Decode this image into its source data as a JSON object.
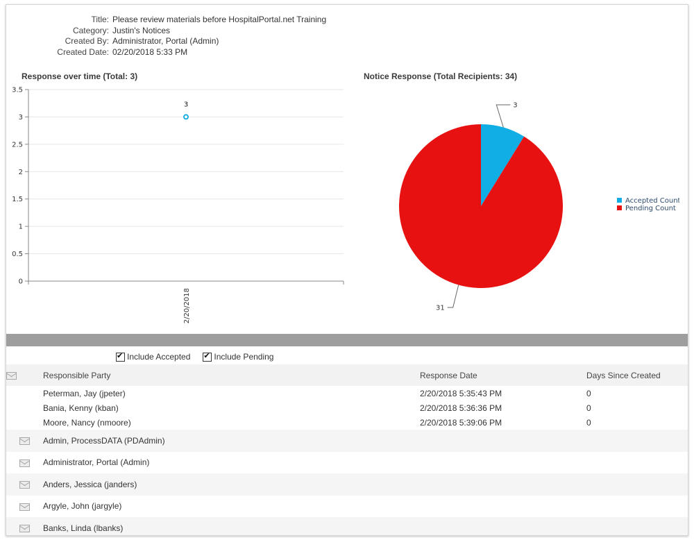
{
  "notice": {
    "title_label": "Title:",
    "title": "Please review materials before HospitalPortal.net Training",
    "category_label": "Category:",
    "category": "Justin's Notices",
    "created_by_label": "Created By:",
    "created_by": "Administrator, Portal (Admin)",
    "created_date_label": "Created Date:",
    "created_date": "02/20/2018 5:33 PM"
  },
  "chart_data": [
    {
      "type": "line",
      "title": "Response over time (Total: 3)",
      "x": [
        "2/20/2018"
      ],
      "series": [
        {
          "values": [
            3
          ]
        }
      ],
      "data_labels": [
        "3"
      ],
      "ylim": [
        0,
        3.5
      ],
      "yticks": [
        "0",
        "0.5",
        "1",
        "1.5",
        "2",
        "2.5",
        "3",
        "3.5"
      ],
      "grid": true,
      "marker_color": "#1aaee0"
    },
    {
      "type": "pie",
      "title": "Notice Response (Total Recipients: 34)",
      "categories": [
        "Accepted Count",
        "Pending Count"
      ],
      "values": [
        3,
        31
      ],
      "colors": [
        "#11ade5",
        "#e81111"
      ],
      "legend": "right"
    }
  ],
  "filters": {
    "include_accepted": "Include Accepted",
    "include_pending": "Include Pending"
  },
  "table": {
    "headers": {
      "party": "Responsible Party",
      "date": "Response Date",
      "days": "Days Since Created"
    },
    "rows": [
      {
        "party": "Peterman, Jay (jpeter)",
        "date": "2/20/2018 5:35:43 PM",
        "days": "0"
      },
      {
        "party": "Bania, Kenny (kban)",
        "date": "2/20/2018 5:36:36 PM",
        "days": "0"
      },
      {
        "party": "Moore, Nancy (nmoore)",
        "date": "2/20/2018 5:39:06 PM",
        "days": "0"
      },
      {
        "party": "Admin, ProcessDATA (PDAdmin)"
      },
      {
        "party": "Administrator, Portal (Admin)"
      },
      {
        "party": "Anders, Jessica (janders)"
      },
      {
        "party": "Argyle, John (jargyle)"
      },
      {
        "party": "Banks, Linda (lbanks)"
      }
    ]
  }
}
